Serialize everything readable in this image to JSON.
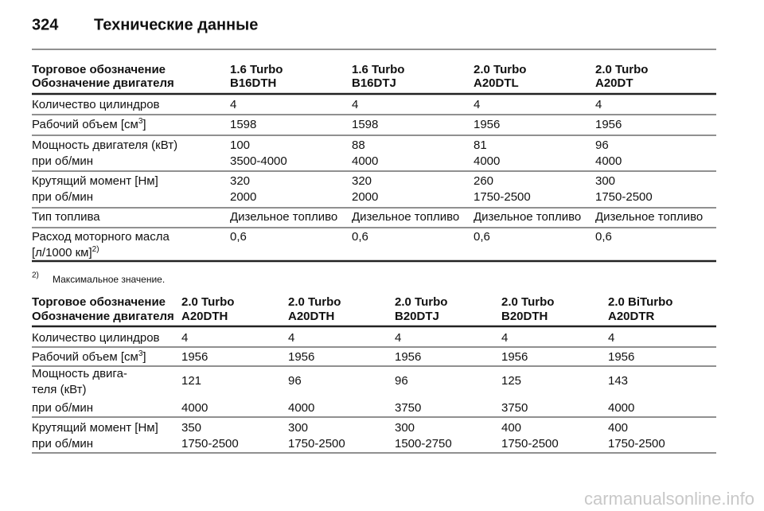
{
  "header": {
    "page_number": "324",
    "title": "Технические данные"
  },
  "table1": {
    "header_labels": [
      "Торговое обозначение",
      "Обозначение двигателя"
    ],
    "columns": [
      {
        "trade": "1.6 Turbo",
        "engine": "B16DTH"
      },
      {
        "trade": "1.6 Turbo",
        "engine": "B16DTJ"
      },
      {
        "trade": "2.0 Turbo",
        "engine": "A20DTL"
      },
      {
        "trade": "2.0 Turbo",
        "engine": "A20DT"
      }
    ],
    "rows": [
      {
        "label": [
          "Количество цилиндров"
        ],
        "values": [
          4,
          4,
          4,
          4
        ]
      },
      {
        "label": [
          "Рабочий объем [см"
        ],
        "label_sup": "3",
        "label_end": "]",
        "values": [
          1598,
          1598,
          1956,
          1956
        ]
      },
      {
        "label": [
          "Мощность двигателя (кВт)"
        ],
        "values": [
          100,
          88,
          81,
          96
        ]
      },
      {
        "label": [
          "при об/мин"
        ],
        "values": [
          "3500-4000",
          4000,
          4000,
          4000
        ]
      },
      {
        "label": [
          "Крутящий момент [Нм]"
        ],
        "values": [
          320,
          320,
          260,
          300
        ]
      },
      {
        "label": [
          "при об/мин"
        ],
        "values": [
          2000,
          2000,
          "1750-2500",
          "1750-2500"
        ]
      },
      {
        "label": [
          "Тип топлива"
        ],
        "values": [
          "Дизельное топливо",
          "Дизельное топливо",
          "Дизельное топливо",
          "Дизельное топливо"
        ]
      },
      {
        "label": [
          "Расход моторного масла",
          "[л/1000 км]"
        ],
        "label_sup": "2)",
        "values": [
          "0,6",
          "0,6",
          "0,6",
          "0,6"
        ]
      }
    ]
  },
  "footnote": {
    "mark": "2)",
    "text": "Максимальное значение."
  },
  "table2": {
    "header_labels": [
      "Торговое обозначение",
      "Обозначение двигателя"
    ],
    "columns": [
      {
        "trade": "2.0 Turbo",
        "engine": "A20DTH"
      },
      {
        "trade": "2.0 Turbo",
        "engine": "A20DTH"
      },
      {
        "trade": "2.0 Turbo",
        "engine": "B20DTJ"
      },
      {
        "trade": "2.0 Turbo",
        "engine": "B20DTH"
      },
      {
        "trade": "2.0 BiTurbo",
        "engine": "A20DTR"
      }
    ],
    "rows": [
      {
        "label": [
          "Количество цилиндров"
        ],
        "values": [
          4,
          4,
          4,
          4,
          4
        ]
      },
      {
        "label": [
          "Рабочий объем [см"
        ],
        "label_sup": "3",
        "label_end": "]",
        "values": [
          1956,
          1956,
          1956,
          1956,
          1956
        ]
      },
      {
        "label": [
          "Мощность двига-",
          "теля (кВт)"
        ],
        "values": [
          121,
          96,
          96,
          125,
          143
        ]
      },
      {
        "label": [
          "при об/мин"
        ],
        "values": [
          4000,
          4000,
          3750,
          3750,
          4000
        ]
      },
      {
        "label": [
          "Крутящий момент [Нм]"
        ],
        "values": [
          350,
          300,
          300,
          400,
          400
        ]
      },
      {
        "label": [
          "при об/мин"
        ],
        "values": [
          "1750-2500",
          "1750-2500",
          "1500-2750",
          "1750-2500",
          "1750-2500"
        ]
      }
    ]
  },
  "watermark": "carmanualsonline.info"
}
